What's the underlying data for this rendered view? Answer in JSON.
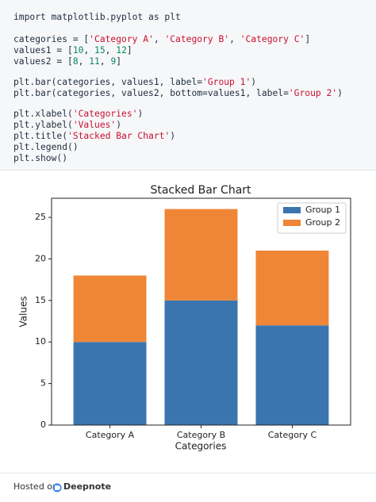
{
  "code": {
    "lines": [
      "import matplotlib.pyplot as plt",
      "categories = ['Category A', 'Category B', 'Category C']",
      "values1 = [10, 15, 12]",
      "values2 = [8, 11, 9]",
      "plt.bar(categories, values1, label='Group 1')",
      "plt.bar(categories, values2, bottom=values1, label='Group 2')",
      "plt.xlabel('Categories')",
      "plt.ylabel('Values')",
      "plt.title('Stacked Bar Chart')",
      "plt.legend()",
      "plt.show()"
    ]
  },
  "chart_data": {
    "type": "bar",
    "stacked": true,
    "title": "Stacked Bar Chart",
    "x_label": "Categories",
    "y_label": "Values",
    "categories": [
      "Category A",
      "Category B",
      "Category C"
    ],
    "series": [
      {
        "name": "Group 1",
        "color": "#3a75b0",
        "values": [
          10,
          15,
          12
        ]
      },
      {
        "name": "Group 2",
        "color": "#ef8636",
        "values": [
          8,
          11,
          9
        ]
      }
    ],
    "ylim": [
      0,
      27.3
    ],
    "yticks": [
      0,
      5,
      10,
      15,
      20,
      25
    ],
    "legend": "upper right"
  },
  "footer": {
    "prefix": "Hosted on",
    "brand": "Deepnote"
  }
}
